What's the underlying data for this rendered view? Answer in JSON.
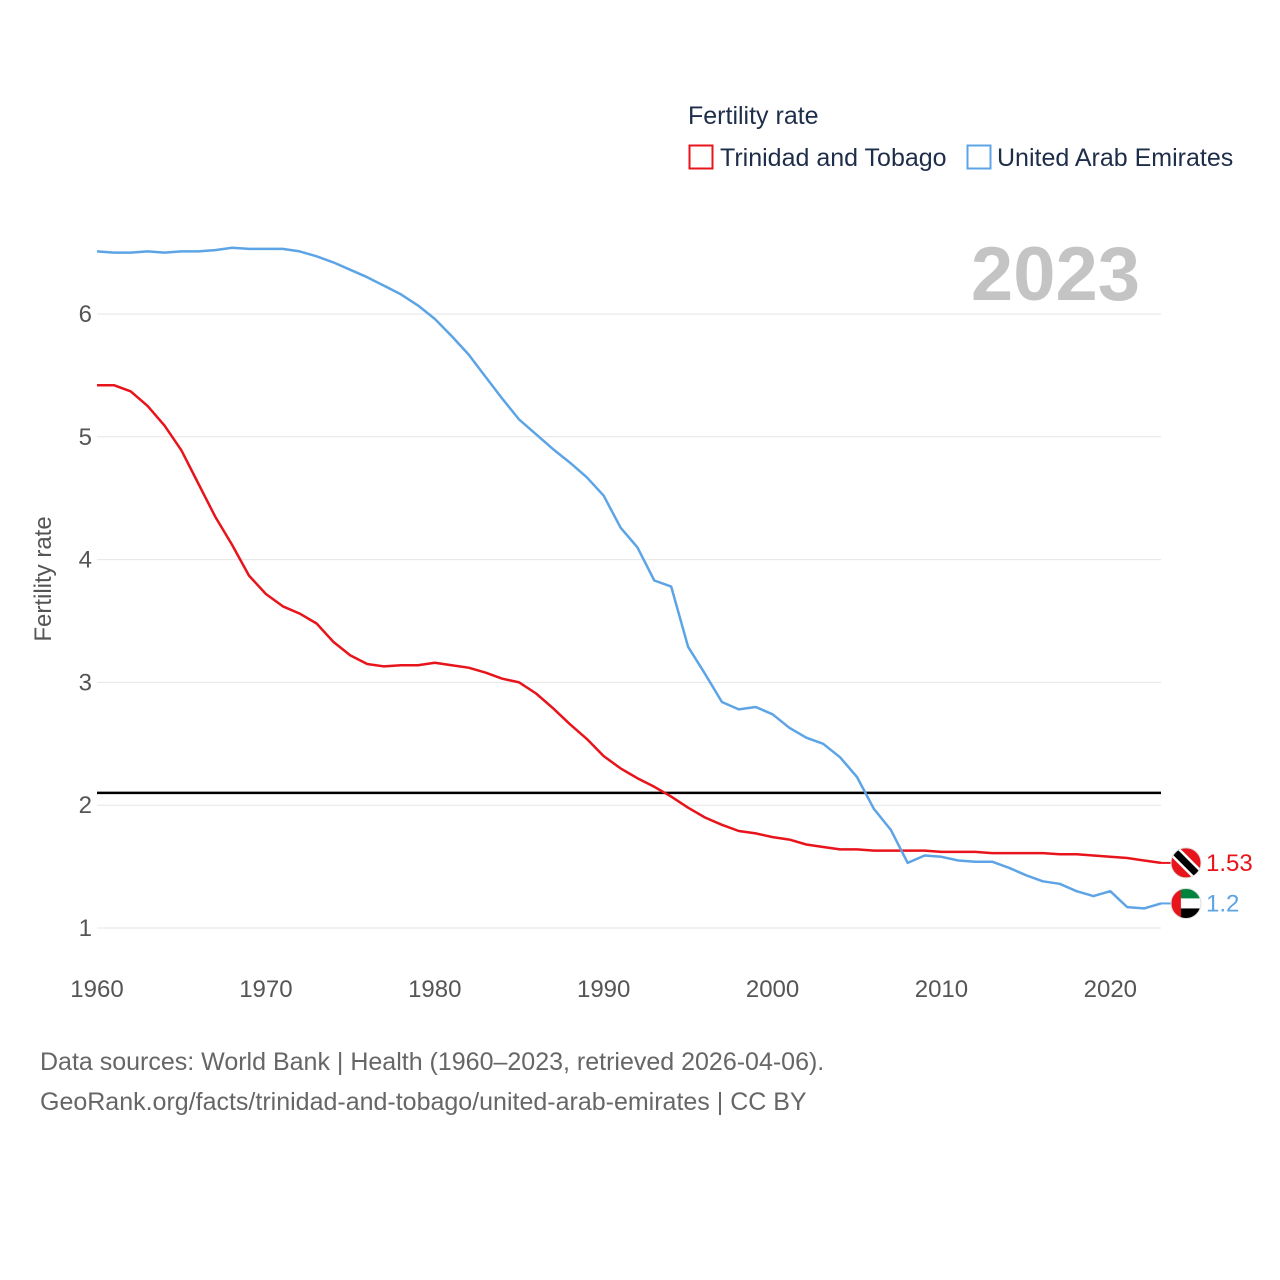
{
  "chart_data": {
    "type": "line",
    "title": "Fertility rate",
    "ylabel": "Fertility rate",
    "xlabel": "",
    "year_label": "2023",
    "xlim": [
      1960,
      2023
    ],
    "ylim": [
      0.7,
      6.5
    ],
    "x_ticks": [
      1960,
      1970,
      1980,
      1990,
      2000,
      2010,
      2020
    ],
    "y_ticks": [
      1,
      2,
      3,
      4,
      5,
      6
    ],
    "reference_line": {
      "y": 2.1,
      "color": "#000000"
    },
    "x": [
      1960,
      1961,
      1962,
      1963,
      1964,
      1965,
      1966,
      1967,
      1968,
      1969,
      1970,
      1971,
      1972,
      1973,
      1974,
      1975,
      1976,
      1977,
      1978,
      1979,
      1980,
      1981,
      1982,
      1983,
      1984,
      1985,
      1986,
      1987,
      1988,
      1989,
      1990,
      1991,
      1992,
      1993,
      1994,
      1995,
      1996,
      1997,
      1998,
      1999,
      2000,
      2001,
      2002,
      2003,
      2004,
      2005,
      2006,
      2007,
      2008,
      2009,
      2010,
      2011,
      2012,
      2013,
      2014,
      2015,
      2016,
      2017,
      2018,
      2019,
      2020,
      2021,
      2022,
      2023
    ],
    "series": [
      {
        "name": "Trinidad and Tobago",
        "color": "#e8141b",
        "end_label": "1.53",
        "flag": "trinidad-and-tobago-flag",
        "values": [
          5.42,
          5.42,
          5.37,
          5.25,
          5.09,
          4.89,
          4.62,
          4.35,
          4.12,
          3.87,
          3.72,
          3.62,
          3.56,
          3.48,
          3.33,
          3.22,
          3.15,
          3.13,
          3.14,
          3.14,
          3.16,
          3.14,
          3.12,
          3.08,
          3.03,
          3.0,
          2.91,
          2.79,
          2.66,
          2.54,
          2.4,
          2.3,
          2.22,
          2.15,
          2.07,
          1.98,
          1.9,
          1.84,
          1.79,
          1.77,
          1.74,
          1.72,
          1.68,
          1.66,
          1.64,
          1.64,
          1.63,
          1.63,
          1.63,
          1.63,
          1.62,
          1.62,
          1.62,
          1.61,
          1.61,
          1.61,
          1.61,
          1.6,
          1.6,
          1.59,
          1.58,
          1.57,
          1.55,
          1.53
        ]
      },
      {
        "name": "United Arab Emirates",
        "color": "#5da4e6",
        "end_label": "1.2",
        "flag": "united-arab-emirates-flag",
        "values": [
          6.51,
          6.5,
          6.5,
          6.51,
          6.5,
          6.51,
          6.51,
          6.52,
          6.54,
          6.53,
          6.53,
          6.53,
          6.51,
          6.47,
          6.42,
          6.36,
          6.3,
          6.23,
          6.16,
          6.07,
          5.96,
          5.82,
          5.67,
          5.49,
          5.31,
          5.14,
          5.02,
          4.9,
          4.79,
          4.67,
          4.52,
          4.26,
          4.1,
          3.83,
          3.78,
          3.29,
          3.07,
          2.84,
          2.78,
          2.8,
          2.74,
          2.63,
          2.55,
          2.5,
          2.39,
          2.23,
          1.97,
          1.8,
          1.53,
          1.59,
          1.58,
          1.55,
          1.54,
          1.54,
          1.49,
          1.43,
          1.38,
          1.36,
          1.3,
          1.26,
          1.3,
          1.17,
          1.16,
          1.2
        ]
      }
    ]
  },
  "legend": {
    "title": "Fertility rate",
    "items": [
      "Trinidad and Tobago",
      "United Arab Emirates"
    ]
  },
  "source": {
    "line1": "Data sources: World Bank | Health (1960–2023, retrieved 2026-04-06).",
    "line2": "GeoRank.org/facts/trinidad-and-tobago/united-arab-emirates | CC BY"
  }
}
